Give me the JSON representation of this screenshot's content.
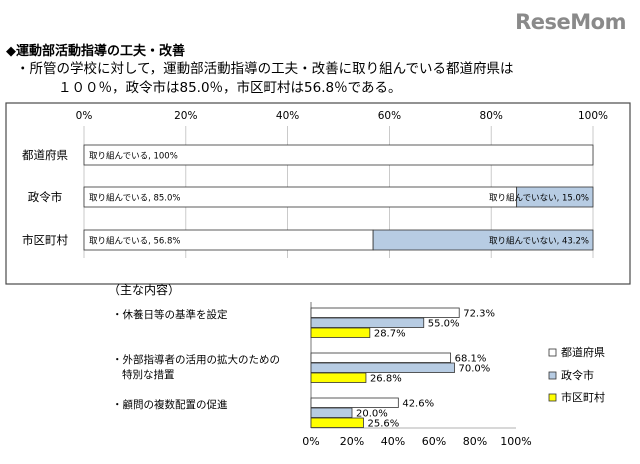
{
  "logo": "ReseMom",
  "heading": "◆運動部活動指導の工夫・改善",
  "summary_line1": "・所管の学校に対して，運動部活動指導の工夫・改善に取り組んでいる都道府県は",
  "summary_line2": "１００％，政令市は85.0％，市区町村は56.8％である。",
  "colors": {
    "accent_blue": "#b7cce3",
    "yellow": "#ffff00",
    "white": "#ffffff",
    "frame": "#4a4a4a"
  },
  "chart_data": [
    {
      "type": "bar",
      "orientation": "horizontal",
      "stacked": true,
      "x_ticks": [
        "0%",
        "20%",
        "40%",
        "60%",
        "80%",
        "100%"
      ],
      "xlim": [
        0,
        100
      ],
      "categories": [
        "都道府県",
        "政令市",
        "市区町村"
      ],
      "series": [
        {
          "name": "取り組んでいる",
          "values": [
            100,
            85.0,
            56.8
          ],
          "color": "#ffffff",
          "labels": [
            "取り組んでいる, 100%",
            "取り組んでいる, 85.0%",
            "取り組んでいる, 56.8%"
          ]
        },
        {
          "name": "取り組んでいない",
          "values": [
            0,
            15.0,
            43.2
          ],
          "color": "#b7cce3",
          "labels": [
            "",
            "取り組んでいない, 15.0%",
            "取り組んでいない, 43.2%"
          ]
        }
      ]
    },
    {
      "type": "bar",
      "orientation": "horizontal",
      "title": "（主な内容）",
      "x_ticks": [
        "0%",
        "20%",
        "40%",
        "60%",
        "80%",
        "100%"
      ],
      "xlim": [
        0,
        100
      ],
      "categories": [
        [
          "・休養日等の基準を設定"
        ],
        [
          "・外部指導者の活用の拡大のための",
          "特別な措置"
        ],
        [
          "・顧問の複数配置の促進"
        ]
      ],
      "series": [
        {
          "name": "都道府県",
          "values": [
            72.3,
            68.1,
            42.6
          ],
          "color": "#ffffff",
          "labels": [
            "72.3%",
            "68.1%",
            "42.6%"
          ]
        },
        {
          "name": "政令市",
          "values": [
            55.0,
            70.0,
            20.0
          ],
          "color": "#b7cce3",
          "labels": [
            "55.0%",
            "70.0%",
            "20.0%"
          ]
        },
        {
          "name": "市区町村",
          "values": [
            28.7,
            26.8,
            25.6
          ],
          "color": "#ffff00",
          "labels": [
            "28.7%",
            "26.8%",
            "25.6%"
          ]
        }
      ],
      "legend": "right"
    }
  ]
}
